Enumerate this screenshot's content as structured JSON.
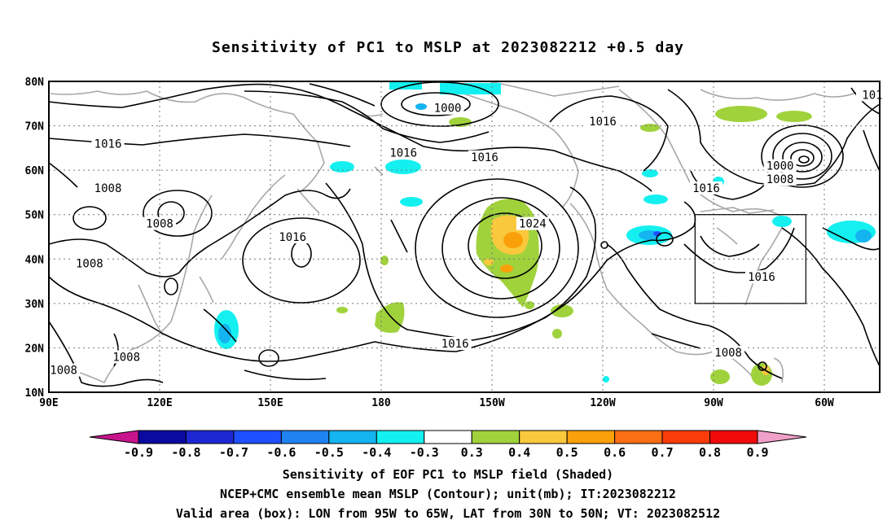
{
  "title": "Sensitivity of PC1 to MSLP at 2023082212 +0.5 day",
  "map": {
    "lat_labels": [
      {
        "value": 80,
        "label": "80N"
      },
      {
        "value": 70,
        "label": "70N"
      },
      {
        "value": 60,
        "label": "60N"
      },
      {
        "value": 50,
        "label": "50N"
      },
      {
        "value": 40,
        "label": "40N"
      },
      {
        "value": 30,
        "label": "30N"
      },
      {
        "value": 20,
        "label": "20N"
      },
      {
        "value": 10,
        "label": "10N"
      }
    ],
    "lon_labels": [
      {
        "value": 90,
        "label": "90E"
      },
      {
        "value": 120,
        "label": "120E"
      },
      {
        "value": 150,
        "label": "150E"
      },
      {
        "value": 180,
        "label": "180"
      },
      {
        "value": 210,
        "label": "150W"
      },
      {
        "value": 240,
        "label": "120W"
      },
      {
        "value": 270,
        "label": "90W"
      },
      {
        "value": 300,
        "label": "60W"
      }
    ],
    "lon_range": [
      90,
      315
    ],
    "lat_range": [
      10,
      80
    ],
    "grid": "dotted",
    "contour_labels": [
      {
        "text": "1000",
        "lon": 198,
        "lat": 74
      },
      {
        "text": "1016",
        "lon": 240,
        "lat": 71
      },
      {
        "text": "101",
        "lon": 313,
        "lat": 77
      },
      {
        "text": "1016",
        "lon": 106,
        "lat": 66
      },
      {
        "text": "1016",
        "lon": 186,
        "lat": 64
      },
      {
        "text": "1016",
        "lon": 208,
        "lat": 63
      },
      {
        "text": "1000",
        "lon": 288,
        "lat": 61
      },
      {
        "text": "1008",
        "lon": 288,
        "lat": 58
      },
      {
        "text": "1016",
        "lon": 268,
        "lat": 56
      },
      {
        "text": "1008",
        "lon": 106,
        "lat": 56
      },
      {
        "text": "1008",
        "lon": 120,
        "lat": 48
      },
      {
        "text": "1024",
        "lon": 221,
        "lat": 48
      },
      {
        "text": "1016",
        "lon": 156,
        "lat": 45
      },
      {
        "text": "1008",
        "lon": 101,
        "lat": 39
      },
      {
        "text": "1016",
        "lon": 283,
        "lat": 36
      },
      {
        "text": "1016",
        "lon": 200,
        "lat": 21
      },
      {
        "text": "1008",
        "lon": 274,
        "lat": 19
      },
      {
        "text": "1008",
        "lon": 111,
        "lat": 18
      },
      {
        "text": "1008",
        "lon": 94,
        "lat": 15
      }
    ],
    "valid_box": {
      "lon_min": 265,
      "lon_max": 295,
      "lat_min": 30,
      "lat_max": 50
    }
  },
  "colorbar": {
    "ticks": [
      "-0.9",
      "-0.8",
      "-0.7",
      "-0.6",
      "-0.5",
      "-0.4",
      "-0.3",
      "0.3",
      "0.4",
      "0.5",
      "0.6",
      "0.7",
      "0.8",
      "0.9"
    ],
    "colors": [
      "#c8148c",
      "#0a0aa0",
      "#1e28d2",
      "#1e50ff",
      "#1e82f0",
      "#14b4f0",
      "#14f0f0",
      "#ffffff",
      "#a0d23c",
      "#fac83c",
      "#faa00a",
      "#fa6e14",
      "#fa3c0a",
      "#f00a0a",
      "#f0a0c8"
    ]
  },
  "captions": {
    "line1": "Sensitivity of EOF PC1 to MSLP field (Shaded)",
    "line2": "NCEP+CMC ensemble mean MSLP (Contour); unit(mb); IT:2023082212",
    "line3": "Valid area (box): LON from 95W to 65W, LAT from 30N to 50N; VT: 2023082512"
  }
}
